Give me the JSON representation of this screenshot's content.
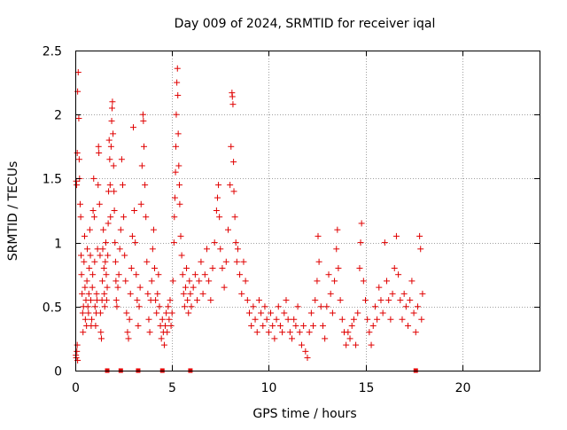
{
  "chart_data": {
    "type": "scatter",
    "title": "Day 009 of 2024, SRMTID for receiver iqal",
    "xlabel": "GPS time / hours",
    "ylabel": "SRMTID / TECUs",
    "xlim": [
      0,
      24
    ],
    "ylim": [
      0,
      2.5
    ],
    "x_ticks": [
      0,
      5,
      10,
      15,
      20
    ],
    "x_tick_labels": [
      "0",
      "5",
      "10",
      "15",
      "20"
    ],
    "y_ticks": [
      0,
      0.5,
      1,
      1.5,
      2,
      2.5
    ],
    "y_tick_labels": [
      "0",
      "0.5",
      "1",
      "1.5",
      "2",
      "2.5"
    ],
    "grid": true,
    "marker": "plus",
    "color": "#e00000",
    "series": [
      {
        "name": "SRMTID",
        "x": [
          0.0,
          0.05,
          0.1,
          0.12,
          0.15,
          0.18,
          0.2,
          0.22,
          0.25,
          0.3,
          0.35,
          0.4,
          0.45,
          0.5,
          0.55,
          0.6,
          0.65,
          0.7,
          0.75,
          0.8,
          0.85,
          0.9,
          0.95,
          1.0,
          1.05,
          1.1,
          1.15,
          1.2,
          1.25,
          1.3,
          1.35,
          1.4,
          1.45,
          1.5,
          1.55,
          1.6,
          1.65,
          1.7,
          1.75,
          1.8,
          1.85,
          1.9,
          1.95,
          2.0,
          2.05,
          2.1,
          2.15,
          2.2,
          2.3,
          2.4,
          2.5,
          2.6,
          2.7,
          2.8,
          2.9,
          3.0,
          3.1,
          3.2,
          3.3,
          3.4,
          3.5,
          3.6,
          3.7,
          3.8,
          3.9,
          4.0,
          4.1,
          4.2,
          4.3,
          4.4,
          4.5,
          4.6,
          4.7,
          4.8,
          4.9,
          5.0,
          5.1,
          5.2,
          5.3,
          5.4,
          5.5,
          5.6,
          5.7,
          5.8,
          5.9,
          6.0,
          6.2,
          6.4,
          6.6,
          6.8,
          7.0,
          7.2,
          7.4,
          7.6,
          7.8,
          8.0,
          8.1,
          8.2,
          8.3,
          8.4,
          8.6,
          8.8,
          9.0,
          9.2,
          9.4,
          9.6,
          9.8,
          10.0,
          10.2,
          10.4,
          10.6,
          10.8,
          11.0,
          11.2,
          11.4,
          11.6,
          11.8,
          12.0,
          12.2,
          12.4,
          12.6,
          12.8,
          13.0,
          13.2,
          13.4,
          13.6,
          13.8,
          14.0,
          14.2,
          14.4,
          14.6,
          14.8,
          15.0,
          15.2,
          15.4,
          15.6,
          15.8,
          16.0,
          16.2,
          16.4,
          16.6,
          16.8,
          17.0,
          17.2,
          17.4,
          17.6,
          17.8,
          17.9,
          0.02,
          0.08,
          0.15,
          0.3,
          0.5,
          0.6,
          0.4,
          0.9,
          1.2,
          0.7,
          0.45,
          0.55,
          0.35,
          0.8,
          0.65,
          0.5,
          0.75,
          0.95,
          0.6,
          1.0,
          0.45,
          0.55,
          0.85,
          0.7,
          0.4,
          0.6,
          0.9,
          0.5,
          0.3,
          0.75,
          0.65,
          1.1,
          0.55,
          0.8,
          0.95,
          0.45,
          0.7,
          0.6,
          1.3,
          0.85,
          0.5,
          0.75,
          1.05,
          0.65,
          0.55,
          0.9,
          0.4,
          0.7,
          0.95,
          0.6,
          0.8,
          0.35,
          0.5,
          0.75,
          0.9,
          0.65,
          0.55,
          0.45,
          0.8,
          0.7,
          1.1,
          0.6,
          0.4,
          0.85,
          0.5,
          0.65,
          0.3,
          0.75,
          0.55,
          0.45,
          0.35,
          0.6,
          0.25,
          0.5,
          0.4,
          1.1,
          0.9,
          1.3,
          0.8,
          0.6,
          0.7,
          0.55,
          0.45,
          0.65,
          0.75,
          0.85,
          0.7,
          0.5,
          0.6,
          0.9,
          0.8,
          0.55,
          0.65,
          0.4,
          0.75,
          0.95,
          0.8,
          1.2,
          0.6,
          0.7,
          0.5,
          0.45,
          0.55,
          0.4,
          0.5,
          0.35,
          0.45,
          0.3,
          0.4,
          0.5,
          0.3,
          0.45,
          0.25,
          0.35,
          0.4,
          0.3,
          0.5,
          0.35,
          0.25,
          0.45,
          0.3,
          0.55,
          0.4,
          0.3,
          0.25,
          0.35,
          0.6,
          0.45,
          0.4,
          0.3,
          0.5,
          0.35,
          0.6,
          0.45,
          0.55,
          0.4,
          0.5,
          0.65,
          0.45,
          0.5,
          0.6,
          0.4,
          0.55,
          0.45,
          0.5,
          0.6,
          0.5,
          0.45
        ]
      }
    ],
    "points": [
      [
        0.03,
        0.12
      ],
      [
        0.05,
        0.1
      ],
      [
        0.08,
        0.15
      ],
      [
        0.1,
        0.2
      ],
      [
        0.12,
        0.08
      ],
      [
        0.05,
        1.48
      ],
      [
        0.07,
        1.45
      ],
      [
        0.1,
        1.7
      ],
      [
        0.12,
        2.18
      ],
      [
        0.15,
        2.33
      ],
      [
        0.18,
        1.97
      ],
      [
        0.2,
        1.65
      ],
      [
        0.22,
        1.5
      ],
      [
        0.25,
        1.3
      ],
      [
        0.28,
        1.2
      ],
      [
        0.3,
        0.9
      ],
      [
        0.32,
        0.75
      ],
      [
        0.35,
        0.6
      ],
      [
        0.38,
        0.45
      ],
      [
        0.4,
        0.3
      ],
      [
        0.42,
        0.5
      ],
      [
        0.45,
        0.85
      ],
      [
        0.48,
        1.05
      ],
      [
        0.5,
        0.65
      ],
      [
        0.52,
        0.4
      ],
      [
        0.55,
        0.55
      ],
      [
        0.58,
        0.35
      ],
      [
        0.6,
        0.7
      ],
      [
        0.62,
        0.95
      ],
      [
        0.65,
        0.5
      ],
      [
        0.68,
        0.45
      ],
      [
        0.7,
        0.6
      ],
      [
        0.72,
        0.8
      ],
      [
        0.75,
        1.1
      ],
      [
        0.78,
        0.9
      ],
      [
        0.8,
        0.55
      ],
      [
        0.82,
        0.35
      ],
      [
        0.85,
        0.4
      ],
      [
        0.88,
        0.65
      ],
      [
        0.9,
        0.75
      ],
      [
        0.92,
        1.25
      ],
      [
        0.95,
        1.5
      ],
      [
        0.98,
        1.2
      ],
      [
        1.0,
        0.85
      ],
      [
        1.02,
        0.5
      ],
      [
        1.05,
        0.35
      ],
      [
        1.08,
        0.45
      ],
      [
        1.1,
        0.6
      ],
      [
        1.12,
        0.55
      ],
      [
        1.15,
        0.95
      ],
      [
        1.18,
        1.45
      ],
      [
        1.2,
        1.75
      ],
      [
        1.22,
        1.7
      ],
      [
        1.25,
        1.3
      ],
      [
        1.28,
        0.9
      ],
      [
        1.3,
        0.45
      ],
      [
        1.32,
        0.3
      ],
      [
        1.35,
        0.25
      ],
      [
        1.38,
        0.55
      ],
      [
        1.4,
        0.7
      ],
      [
        1.42,
        0.95
      ],
      [
        1.45,
        1.1
      ],
      [
        1.48,
        0.8
      ],
      [
        1.5,
        0.6
      ],
      [
        1.52,
        0.5
      ],
      [
        1.55,
        0.85
      ],
      [
        1.58,
        1.0
      ],
      [
        1.6,
        0.75
      ],
      [
        1.62,
        0.55
      ],
      [
        1.65,
        0.65
      ],
      [
        1.68,
        0.9
      ],
      [
        1.7,
        1.15
      ],
      [
        1.72,
        1.4
      ],
      [
        1.75,
        1.8
      ],
      [
        1.78,
        1.65
      ],
      [
        1.8,
        1.45
      ],
      [
        1.82,
        1.2
      ],
      [
        1.85,
        1.75
      ],
      [
        1.88,
        1.95
      ],
      [
        1.9,
        2.05
      ],
      [
        1.92,
        2.1
      ],
      [
        1.95,
        1.85
      ],
      [
        1.98,
        1.6
      ],
      [
        2.0,
        1.4
      ],
      [
        2.02,
        1.25
      ],
      [
        2.05,
        1.0
      ],
      [
        2.08,
        0.85
      ],
      [
        2.1,
        0.7
      ],
      [
        2.12,
        0.55
      ],
      [
        2.15,
        0.5
      ],
      [
        2.2,
        0.65
      ],
      [
        2.25,
        0.75
      ],
      [
        2.3,
        0.95
      ],
      [
        2.35,
        1.1
      ],
      [
        2.4,
        1.65
      ],
      [
        2.45,
        1.45
      ],
      [
        2.5,
        1.2
      ],
      [
        2.55,
        0.9
      ],
      [
        2.6,
        0.7
      ],
      [
        2.65,
        0.45
      ],
      [
        2.7,
        0.3
      ],
      [
        2.75,
        0.25
      ],
      [
        2.8,
        0.4
      ],
      [
        2.85,
        0.6
      ],
      [
        2.9,
        0.8
      ],
      [
        2.95,
        1.05
      ],
      [
        3.0,
        1.9
      ],
      [
        3.05,
        1.25
      ],
      [
        3.1,
        1.0
      ],
      [
        3.15,
        0.75
      ],
      [
        3.2,
        0.55
      ],
      [
        3.25,
        0.35
      ],
      [
        3.3,
        0.5
      ],
      [
        3.35,
        0.65
      ],
      [
        3.4,
        1.3
      ],
      [
        3.45,
        1.6
      ],
      [
        3.5,
        2.0
      ],
      [
        3.52,
        1.95
      ],
      [
        3.55,
        1.75
      ],
      [
        3.6,
        1.45
      ],
      [
        3.65,
        1.2
      ],
      [
        3.7,
        0.85
      ],
      [
        3.75,
        0.6
      ],
      [
        3.8,
        0.4
      ],
      [
        3.85,
        0.3
      ],
      [
        3.9,
        0.55
      ],
      [
        3.95,
        0.7
      ],
      [
        4.0,
        0.95
      ],
      [
        4.05,
        1.1
      ],
      [
        4.1,
        0.8
      ],
      [
        4.15,
        0.55
      ],
      [
        4.2,
        0.45
      ],
      [
        4.25,
        0.6
      ],
      [
        4.3,
        0.75
      ],
      [
        4.35,
        0.5
      ],
      [
        4.4,
        0.35
      ],
      [
        4.45,
        0.25
      ],
      [
        4.5,
        0.4
      ],
      [
        4.55,
        0.3
      ],
      [
        4.6,
        0.2
      ],
      [
        4.65,
        0.35
      ],
      [
        4.7,
        0.45
      ],
      [
        4.75,
        0.3
      ],
      [
        4.8,
        0.5
      ],
      [
        4.85,
        0.4
      ],
      [
        4.9,
        0.55
      ],
      [
        4.95,
        0.35
      ],
      [
        5.0,
        0.45
      ],
      [
        5.05,
        0.7
      ],
      [
        5.1,
        1.0
      ],
      [
        5.12,
        1.2
      ],
      [
        5.15,
        1.35
      ],
      [
        5.18,
        1.55
      ],
      [
        5.2,
        1.75
      ],
      [
        5.22,
        2.0
      ],
      [
        5.25,
        2.25
      ],
      [
        5.28,
        2.36
      ],
      [
        5.3,
        2.15
      ],
      [
        5.32,
        1.85
      ],
      [
        5.35,
        1.6
      ],
      [
        5.38,
        1.45
      ],
      [
        5.4,
        1.3
      ],
      [
        5.45,
        1.05
      ],
      [
        5.5,
        0.9
      ],
      [
        5.55,
        0.75
      ],
      [
        5.6,
        0.6
      ],
      [
        5.65,
        0.5
      ],
      [
        5.7,
        0.65
      ],
      [
        5.75,
        0.8
      ],
      [
        5.8,
        0.55
      ],
      [
        5.85,
        0.45
      ],
      [
        5.9,
        0.7
      ],
      [
        5.95,
        0.6
      ],
      [
        6.0,
        0.5
      ],
      [
        6.1,
        0.65
      ],
      [
        6.2,
        0.75
      ],
      [
        6.3,
        0.55
      ],
      [
        6.4,
        0.7
      ],
      [
        6.5,
        0.85
      ],
      [
        6.6,
        0.6
      ],
      [
        6.7,
        0.75
      ],
      [
        6.8,
        0.95
      ],
      [
        6.9,
        0.7
      ],
      [
        7.0,
        0.55
      ],
      [
        7.1,
        0.8
      ],
      [
        7.2,
        1.0
      ],
      [
        7.3,
        1.25
      ],
      [
        7.35,
        1.35
      ],
      [
        7.4,
        1.45
      ],
      [
        7.45,
        1.2
      ],
      [
        7.5,
        0.95
      ],
      [
        7.6,
        0.8
      ],
      [
        7.7,
        0.65
      ],
      [
        7.8,
        0.85
      ],
      [
        7.9,
        1.1
      ],
      [
        8.0,
        1.45
      ],
      [
        8.05,
        1.75
      ],
      [
        8.1,
        2.17
      ],
      [
        8.12,
        2.14
      ],
      [
        8.15,
        2.08
      ],
      [
        8.18,
        1.63
      ],
      [
        8.2,
        1.4
      ],
      [
        8.25,
        1.2
      ],
      [
        8.3,
        1.0
      ],
      [
        8.35,
        0.85
      ],
      [
        8.4,
        0.95
      ],
      [
        8.5,
        0.75
      ],
      [
        8.6,
        0.6
      ],
      [
        8.7,
        0.85
      ],
      [
        8.8,
        0.7
      ],
      [
        8.9,
        0.55
      ],
      [
        9.0,
        0.45
      ],
      [
        9.1,
        0.35
      ],
      [
        9.2,
        0.5
      ],
      [
        9.3,
        0.4
      ],
      [
        9.4,
        0.3
      ],
      [
        9.5,
        0.55
      ],
      [
        9.6,
        0.45
      ],
      [
        9.7,
        0.35
      ],
      [
        9.8,
        0.5
      ],
      [
        9.9,
        0.4
      ],
      [
        10.0,
        0.3
      ],
      [
        10.1,
        0.45
      ],
      [
        10.2,
        0.35
      ],
      [
        10.3,
        0.25
      ],
      [
        10.4,
        0.4
      ],
      [
        10.5,
        0.5
      ],
      [
        10.6,
        0.35
      ],
      [
        10.7,
        0.3
      ],
      [
        10.8,
        0.45
      ],
      [
        10.9,
        0.55
      ],
      [
        11.0,
        0.4
      ],
      [
        11.1,
        0.3
      ],
      [
        11.2,
        0.25
      ],
      [
        11.3,
        0.4
      ],
      [
        11.4,
        0.35
      ],
      [
        11.5,
        0.5
      ],
      [
        11.6,
        0.3
      ],
      [
        11.7,
        0.2
      ],
      [
        11.8,
        0.35
      ],
      [
        11.9,
        0.15
      ],
      [
        12.0,
        0.1
      ],
      [
        12.1,
        0.3
      ],
      [
        12.2,
        0.45
      ],
      [
        12.3,
        0.35
      ],
      [
        12.4,
        0.55
      ],
      [
        12.5,
        0.7
      ],
      [
        12.55,
        1.05
      ],
      [
        12.6,
        0.85
      ],
      [
        12.7,
        0.5
      ],
      [
        12.8,
        0.35
      ],
      [
        12.9,
        0.25
      ],
      [
        13.0,
        0.5
      ],
      [
        13.1,
        0.75
      ],
      [
        13.2,
        0.6
      ],
      [
        13.3,
        0.45
      ],
      [
        13.4,
        0.7
      ],
      [
        13.5,
        0.95
      ],
      [
        13.55,
        1.1
      ],
      [
        13.6,
        0.8
      ],
      [
        13.7,
        0.55
      ],
      [
        13.8,
        0.4
      ],
      [
        13.9,
        0.3
      ],
      [
        14.0,
        0.2
      ],
      [
        14.1,
        0.3
      ],
      [
        14.2,
        0.25
      ],
      [
        14.3,
        0.35
      ],
      [
        14.4,
        0.4
      ],
      [
        14.5,
        0.2
      ],
      [
        14.6,
        0.45
      ],
      [
        14.7,
        0.8
      ],
      [
        14.75,
        1.0
      ],
      [
        14.8,
        1.15
      ],
      [
        14.9,
        0.7
      ],
      [
        15.0,
        0.55
      ],
      [
        15.1,
        0.4
      ],
      [
        15.2,
        0.3
      ],
      [
        15.3,
        0.2
      ],
      [
        15.4,
        0.35
      ],
      [
        15.5,
        0.5
      ],
      [
        15.6,
        0.4
      ],
      [
        15.7,
        0.65
      ],
      [
        15.8,
        0.55
      ],
      [
        15.9,
        0.45
      ],
      [
        16.0,
        1.0
      ],
      [
        16.1,
        0.7
      ],
      [
        16.2,
        0.55
      ],
      [
        16.3,
        0.4
      ],
      [
        16.4,
        0.6
      ],
      [
        16.5,
        0.8
      ],
      [
        16.6,
        1.05
      ],
      [
        16.7,
        0.75
      ],
      [
        16.8,
        0.55
      ],
      [
        16.9,
        0.4
      ],
      [
        17.0,
        0.6
      ],
      [
        17.1,
        0.5
      ],
      [
        17.2,
        0.35
      ],
      [
        17.3,
        0.55
      ],
      [
        17.4,
        0.7
      ],
      [
        17.5,
        0.45
      ],
      [
        17.6,
        0.3
      ],
      [
        17.7,
        0.5
      ],
      [
        17.8,
        1.05
      ],
      [
        17.85,
        0.95
      ],
      [
        17.9,
        0.4
      ],
      [
        17.95,
        0.6
      ]
    ],
    "zero_markers_x": [
      1.65,
      2.35,
      3.25,
      4.5,
      5.95,
      17.6
    ]
  }
}
